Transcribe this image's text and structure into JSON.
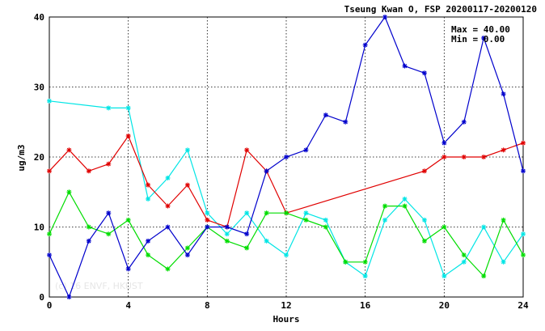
{
  "chart_data": {
    "type": "line",
    "title": "Tseung Kwan O, FSP 20200117-20200120",
    "xlabel": "Hours",
    "ylabel": "ug/m3",
    "xlim": [
      0,
      24
    ],
    "ylim": [
      0,
      40
    ],
    "xticks": [
      0,
      4,
      8,
      12,
      16,
      20,
      24
    ],
    "yticks": [
      0,
      10,
      20,
      30,
      40
    ],
    "xtick_labels": [
      "0",
      "4",
      "8",
      "12",
      "16",
      "20",
      "24"
    ],
    "ytick_labels": [
      "0",
      "10",
      "20",
      "30",
      "40"
    ],
    "grid": true,
    "stats": {
      "max_label": "Max = 40.00",
      "min_label": "Min = 0.00"
    },
    "watermark": "(c) 16 ENVF, HKUST",
    "series": [
      {
        "color": "#00e5e5",
        "points": [
          [
            0,
            28
          ],
          [
            3,
            27
          ],
          [
            4,
            27
          ],
          [
            5,
            14
          ],
          [
            6,
            17
          ],
          [
            7,
            21
          ],
          [
            8,
            12
          ],
          [
            9,
            9
          ],
          [
            10,
            12
          ],
          [
            11,
            8
          ],
          [
            12,
            6
          ],
          [
            13,
            12
          ],
          [
            14,
            11
          ],
          [
            15,
            5
          ],
          [
            16,
            3
          ],
          [
            17,
            11
          ],
          [
            18,
            14
          ],
          [
            19,
            11
          ],
          [
            20,
            3
          ],
          [
            21,
            5
          ],
          [
            22,
            10
          ],
          [
            23,
            5
          ],
          [
            24,
            9
          ]
        ]
      },
      {
        "color": "#e00000",
        "points": [
          [
            0,
            18
          ],
          [
            1,
            21
          ],
          [
            2,
            18
          ],
          [
            3,
            19
          ],
          [
            4,
            23
          ],
          [
            5,
            16
          ],
          [
            6,
            13
          ],
          [
            7,
            16
          ],
          [
            8,
            11
          ],
          [
            9,
            10
          ],
          [
            10,
            21
          ],
          [
            11,
            18
          ],
          [
            12,
            12
          ],
          [
            19,
            18
          ],
          [
            20,
            20
          ],
          [
            21,
            20
          ],
          [
            22,
            20
          ],
          [
            23,
            21
          ],
          [
            24,
            22
          ]
        ]
      },
      {
        "color": "#00dd00",
        "points": [
          [
            0,
            9
          ],
          [
            1,
            15
          ],
          [
            2,
            10
          ],
          [
            3,
            9
          ],
          [
            4,
            11
          ],
          [
            5,
            6
          ],
          [
            6,
            4
          ],
          [
            7,
            7
          ],
          [
            8,
            10
          ],
          [
            9,
            8
          ],
          [
            10,
            7
          ],
          [
            11,
            12
          ],
          [
            12,
            12
          ],
          [
            13,
            11
          ],
          [
            14,
            10
          ],
          [
            15,
            5
          ],
          [
            16,
            5
          ],
          [
            17,
            13
          ],
          [
            18,
            13
          ],
          [
            19,
            8
          ],
          [
            20,
            10
          ],
          [
            21,
            6
          ],
          [
            22,
            3
          ],
          [
            23,
            11
          ],
          [
            24,
            6
          ]
        ]
      },
      {
        "color": "#0000cc",
        "points": [
          [
            0,
            6
          ],
          [
            1,
            0
          ],
          [
            2,
            8
          ],
          [
            3,
            12
          ],
          [
            4,
            4
          ],
          [
            5,
            8
          ],
          [
            6,
            10
          ],
          [
            7,
            6
          ],
          [
            8,
            10
          ],
          [
            9,
            10
          ],
          [
            10,
            9
          ],
          [
            11,
            18
          ],
          [
            12,
            20
          ],
          [
            13,
            21
          ],
          [
            14,
            26
          ],
          [
            15,
            25
          ],
          [
            16,
            36
          ],
          [
            17,
            40
          ],
          [
            18,
            33
          ],
          [
            19,
            32
          ],
          [
            20,
            22
          ],
          [
            21,
            25
          ],
          [
            22,
            37
          ],
          [
            23,
            29
          ],
          [
            24,
            18
          ]
        ]
      }
    ]
  }
}
